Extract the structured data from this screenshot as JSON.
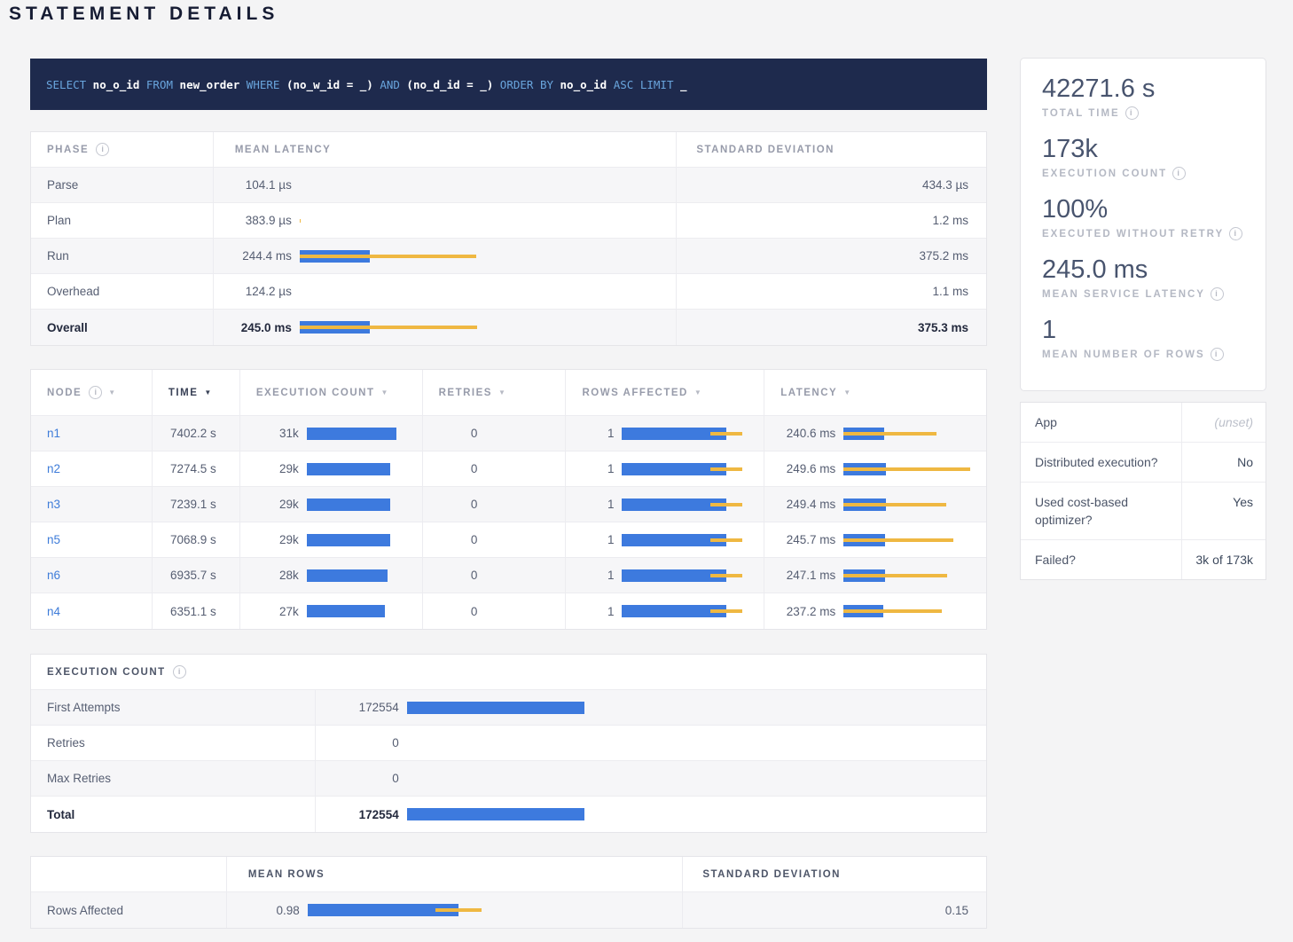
{
  "page_title": "STATEMENT DETAILS",
  "colors": {
    "bar_blue": "#3d7ade",
    "bar_yellow": "#efb842",
    "link_blue": "#3e7cd9",
    "sql_bg": "#1e2a4d",
    "sql_keyword": "#69a5dd"
  },
  "sql": {
    "tokens": [
      {
        "t": "kw",
        "v": "SELECT"
      },
      {
        "t": "id",
        "v": "no_o_id"
      },
      {
        "t": "kw",
        "v": "FROM"
      },
      {
        "t": "id",
        "v": "new_order"
      },
      {
        "t": "kw",
        "v": "WHERE"
      },
      {
        "t": "id",
        "v": "(no_w_id = _)"
      },
      {
        "t": "kw",
        "v": "AND"
      },
      {
        "t": "id",
        "v": "(no_d_id = _)"
      },
      {
        "t": "kw",
        "v": "ORDER BY"
      },
      {
        "t": "id",
        "v": "no_o_id"
      },
      {
        "t": "kw",
        "v": "ASC"
      },
      {
        "t": "kw",
        "v": "LIMIT"
      },
      {
        "t": "id",
        "v": "_"
      }
    ]
  },
  "phase_table": {
    "headers": {
      "phase": "PHASE",
      "mean": "MEAN LATENCY",
      "stddev": "STANDARD DEVIATION"
    },
    "rows": [
      {
        "phase": "Parse",
        "mean_label": "104.1 µs",
        "stddev_label": "434.3 µs",
        "mean_ms": 0.1041,
        "stddev_ms": 0.4343
      },
      {
        "phase": "Plan",
        "mean_label": "383.9 µs",
        "stddev_label": "1.2 ms",
        "mean_ms": 0.3839,
        "stddev_ms": 1.2
      },
      {
        "phase": "Run",
        "mean_label": "244.4 ms",
        "stddev_label": "375.2 ms",
        "mean_ms": 244.4,
        "stddev_ms": 375.2
      },
      {
        "phase": "Overhead",
        "mean_label": "124.2 µs",
        "stddev_label": "1.1 ms",
        "mean_ms": 0.1242,
        "stddev_ms": 1.1
      },
      {
        "phase": "Overall",
        "mean_label": "245.0 ms",
        "stddev_label": "375.3 ms",
        "mean_ms": 245.0,
        "stddev_ms": 375.3
      }
    ]
  },
  "node_table": {
    "headers": {
      "node": "NODE",
      "time": "TIME",
      "exec": "EXECUTION COUNT",
      "retries": "RETRIES",
      "rows": "ROWS AFFECTED",
      "latency": "LATENCY"
    },
    "rows": [
      {
        "node": "n1",
        "time": "7402.2 s",
        "count_label": "31k",
        "count": 31000,
        "retries": "0",
        "rows_label": "1",
        "rows_mean": 0.98,
        "rows_stddev": 0.15,
        "latency_label": "240.6 ms",
        "latency_ms": 240.6,
        "latency_stddev_ms": 310
      },
      {
        "node": "n2",
        "time": "7274.5 s",
        "count_label": "29k",
        "count": 29000,
        "retries": "0",
        "rows_label": "1",
        "rows_mean": 0.98,
        "rows_stddev": 0.15,
        "latency_label": "249.6 ms",
        "latency_ms": 249.6,
        "latency_stddev_ms": 500
      },
      {
        "node": "n3",
        "time": "7239.1 s",
        "count_label": "29k",
        "count": 29000,
        "retries": "0",
        "rows_label": "1",
        "rows_mean": 0.98,
        "rows_stddev": 0.15,
        "latency_label": "249.4 ms",
        "latency_ms": 249.4,
        "latency_stddev_ms": 360
      },
      {
        "node": "n5",
        "time": "7068.9 s",
        "count_label": "29k",
        "count": 29000,
        "retries": "0",
        "rows_label": "1",
        "rows_mean": 0.98,
        "rows_stddev": 0.15,
        "latency_label": "245.7 ms",
        "latency_ms": 245.7,
        "latency_stddev_ms": 405
      },
      {
        "node": "n6",
        "time": "6935.7 s",
        "count_label": "28k",
        "count": 28000,
        "retries": "0",
        "rows_label": "1",
        "rows_mean": 0.98,
        "rows_stddev": 0.15,
        "latency_label": "247.1 ms",
        "latency_ms": 247.1,
        "latency_stddev_ms": 365
      },
      {
        "node": "n4",
        "time": "6351.1 s",
        "count_label": "27k",
        "count": 27000,
        "retries": "0",
        "rows_label": "1",
        "rows_mean": 0.98,
        "rows_stddev": 0.15,
        "latency_label": "237.2 ms",
        "latency_ms": 237.2,
        "latency_stddev_ms": 345
      }
    ]
  },
  "execution_count_table": {
    "title": "EXECUTION COUNT",
    "rows": [
      {
        "label": "First Attempts",
        "value_label": "172554",
        "value": 172554
      },
      {
        "label": "Retries",
        "value_label": "0",
        "value": 0
      },
      {
        "label": "Max Retries",
        "value_label": "0",
        "value": 0
      },
      {
        "label": "Total",
        "value_label": "172554",
        "value": 172554
      }
    ]
  },
  "rows_affected_table": {
    "headers": {
      "mean": "MEAN ROWS",
      "stddev": "STANDARD DEVIATION"
    },
    "row": {
      "label": "Rows Affected",
      "mean_label": "0.98",
      "mean": 0.98,
      "stddev_label": "0.15",
      "stddev": 0.15
    }
  },
  "summary": [
    {
      "value": "42271.6 s",
      "label": "TOTAL TIME"
    },
    {
      "value": "173k",
      "label": "EXECUTION COUNT"
    },
    {
      "value": "100%",
      "label": "EXECUTED WITHOUT RETRY"
    },
    {
      "value": "245.0 ms",
      "label": "MEAN SERVICE LATENCY"
    },
    {
      "value": "1",
      "label": "MEAN NUMBER OF ROWS"
    }
  ],
  "details": [
    {
      "label": "App",
      "value": "(unset)"
    },
    {
      "label": "Distributed execution?",
      "value": "No"
    },
    {
      "label": "Used cost-based optimizer?",
      "value": "Yes"
    },
    {
      "label": "Failed?",
      "value": "3k of 173k"
    }
  ]
}
